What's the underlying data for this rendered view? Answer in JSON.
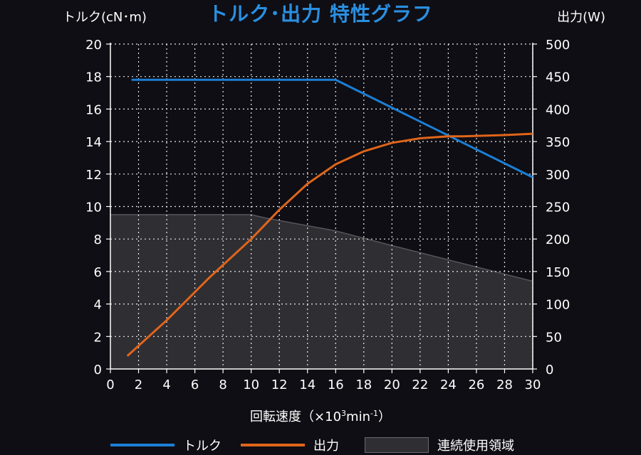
{
  "chart_data": {
    "type": "line",
    "title": "トルク･出力 特性グラフ",
    "xlabel": "回転速度（×10",
    "xlabel_sup1": "3",
    "xlabel_mid": "min",
    "xlabel_sup2": "-1",
    "xlabel_end": "）",
    "ylabel_left": "トルク(cN･m)",
    "ylabel_right": "出力(W)",
    "xlim": [
      0,
      30
    ],
    "ylim_left": [
      0,
      20
    ],
    "ylim_right": [
      0,
      500
    ],
    "x_ticks": [
      "0",
      "2",
      "4",
      "6",
      "8",
      "10",
      "12",
      "14",
      "16",
      "18",
      "20",
      "22",
      "24",
      "26",
      "28",
      "30"
    ],
    "y_left_ticks": [
      "0",
      "2",
      "4",
      "6",
      "8",
      "10",
      "12",
      "14",
      "16",
      "18",
      "20"
    ],
    "y_right_ticks": [
      "0",
      "50",
      "100",
      "150",
      "200",
      "250",
      "300",
      "350",
      "400",
      "450",
      "500"
    ],
    "grid": true,
    "legend_position": "bottom",
    "series": [
      {
        "name": "トルク",
        "axis": "left",
        "color": "#1c7fd6",
        "x": [
          1.5,
          16,
          30
        ],
        "y": [
          17.8,
          17.8,
          11.8
        ]
      },
      {
        "name": "出力",
        "axis": "right",
        "color": "#e0651a",
        "x": [
          1.2,
          4,
          7,
          10,
          12,
          14,
          16,
          18,
          20,
          22,
          24,
          25,
          28,
          30
        ],
        "y": [
          20,
          75,
          140,
          200,
          245,
          285,
          315,
          335,
          348,
          355,
          358,
          358,
          360,
          362
        ]
      }
    ],
    "area": {
      "name": "連続使用領域",
      "axis": "left",
      "color": "#2e2e33",
      "x": [
        0,
        10,
        11,
        16,
        20,
        30
      ],
      "y": [
        9.5,
        9.5,
        9.3,
        8.5,
        7.6,
        5.4
      ]
    }
  }
}
